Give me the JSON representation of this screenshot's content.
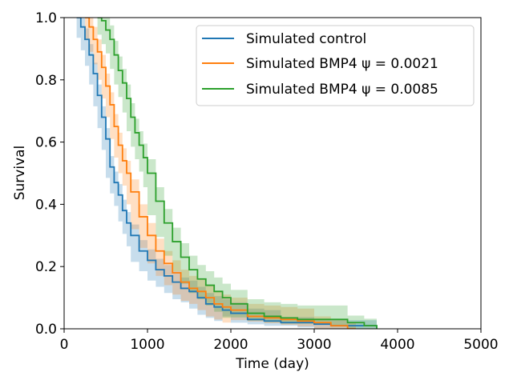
{
  "chart_data": {
    "type": "line",
    "subtype": "kaplan-meier survival with confidence bands",
    "title": "",
    "xlabel": "Time (day)",
    "ylabel": "Survival",
    "xlim": [
      0,
      5000
    ],
    "ylim": [
      0.0,
      1.0
    ],
    "xticks": [
      0,
      1000,
      2000,
      3000,
      4000,
      5000
    ],
    "xtick_labels": [
      "0",
      "1000",
      "2000",
      "3000",
      "4000",
      "5000"
    ],
    "yticks": [
      0.0,
      0.2,
      0.4,
      0.6,
      0.8,
      1.0
    ],
    "ytick_labels": [
      "0.0",
      "0.2",
      "0.4",
      "0.6",
      "0.8",
      "1.0"
    ],
    "grid": false,
    "legend_position": "top-right",
    "series": [
      {
        "name": "Simulated control",
        "legend_text": "Simulated control",
        "color": "#1f77b4",
        "x": [
          150,
          200,
          250,
          300,
          350,
          400,
          450,
          500,
          550,
          600,
          650,
          700,
          750,
          800,
          900,
          1000,
          1100,
          1200,
          1300,
          1400,
          1500,
          1600,
          1700,
          1800,
          1900,
          2000,
          2200,
          2400,
          2600,
          2800,
          3000,
          3200,
          3400,
          3600,
          3750
        ],
        "y": [
          1.0,
          0.97,
          0.93,
          0.88,
          0.82,
          0.75,
          0.68,
          0.61,
          0.52,
          0.47,
          0.43,
          0.38,
          0.34,
          0.3,
          0.25,
          0.22,
          0.19,
          0.17,
          0.15,
          0.13,
          0.12,
          0.1,
          0.08,
          0.07,
          0.06,
          0.05,
          0.03,
          0.025,
          0.02,
          0.02,
          0.015,
          0.01,
          0.01,
          0.01,
          0.0
        ],
        "ci_half_width": 0.035
      },
      {
        "name": "Simulated BMP4 psi=0.0021",
        "legend_text": "Simulated BMP4 ψ = 0.0021",
        "color": "#ff7f0e",
        "x": [
          250,
          300,
          350,
          400,
          450,
          500,
          550,
          600,
          650,
          700,
          750,
          800,
          900,
          1000,
          1100,
          1200,
          1300,
          1400,
          1500,
          1600,
          1700,
          1800,
          1900,
          2000,
          2200,
          2400,
          2600,
          2800,
          3000,
          3200,
          3400,
          3500
        ],
        "y": [
          1.0,
          0.97,
          0.93,
          0.89,
          0.84,
          0.78,
          0.72,
          0.65,
          0.59,
          0.54,
          0.5,
          0.44,
          0.36,
          0.3,
          0.25,
          0.21,
          0.18,
          0.15,
          0.13,
          0.12,
          0.1,
          0.08,
          0.07,
          0.06,
          0.04,
          0.035,
          0.03,
          0.025,
          0.02,
          0.01,
          0.0,
          0.0
        ],
        "ci_half_width": 0.04
      },
      {
        "name": "Simulated BMP4 psi=0.0085",
        "legend_text": "Simulated BMP4 ψ = 0.0085",
        "color": "#2ca02c",
        "x": [
          400,
          450,
          500,
          550,
          600,
          650,
          700,
          750,
          800,
          850,
          900,
          950,
          1000,
          1100,
          1200,
          1300,
          1400,
          1500,
          1600,
          1700,
          1800,
          1900,
          2000,
          2200,
          2400,
          2600,
          2800,
          3000,
          3200,
          3400,
          3600,
          3750
        ],
        "y": [
          1.0,
          0.99,
          0.96,
          0.93,
          0.88,
          0.83,
          0.79,
          0.74,
          0.68,
          0.63,
          0.59,
          0.55,
          0.5,
          0.41,
          0.34,
          0.28,
          0.23,
          0.19,
          0.16,
          0.14,
          0.12,
          0.1,
          0.08,
          0.05,
          0.04,
          0.035,
          0.03,
          0.03,
          0.03,
          0.02,
          0.01,
          0.0
        ],
        "ci_half_width": 0.045
      }
    ]
  }
}
